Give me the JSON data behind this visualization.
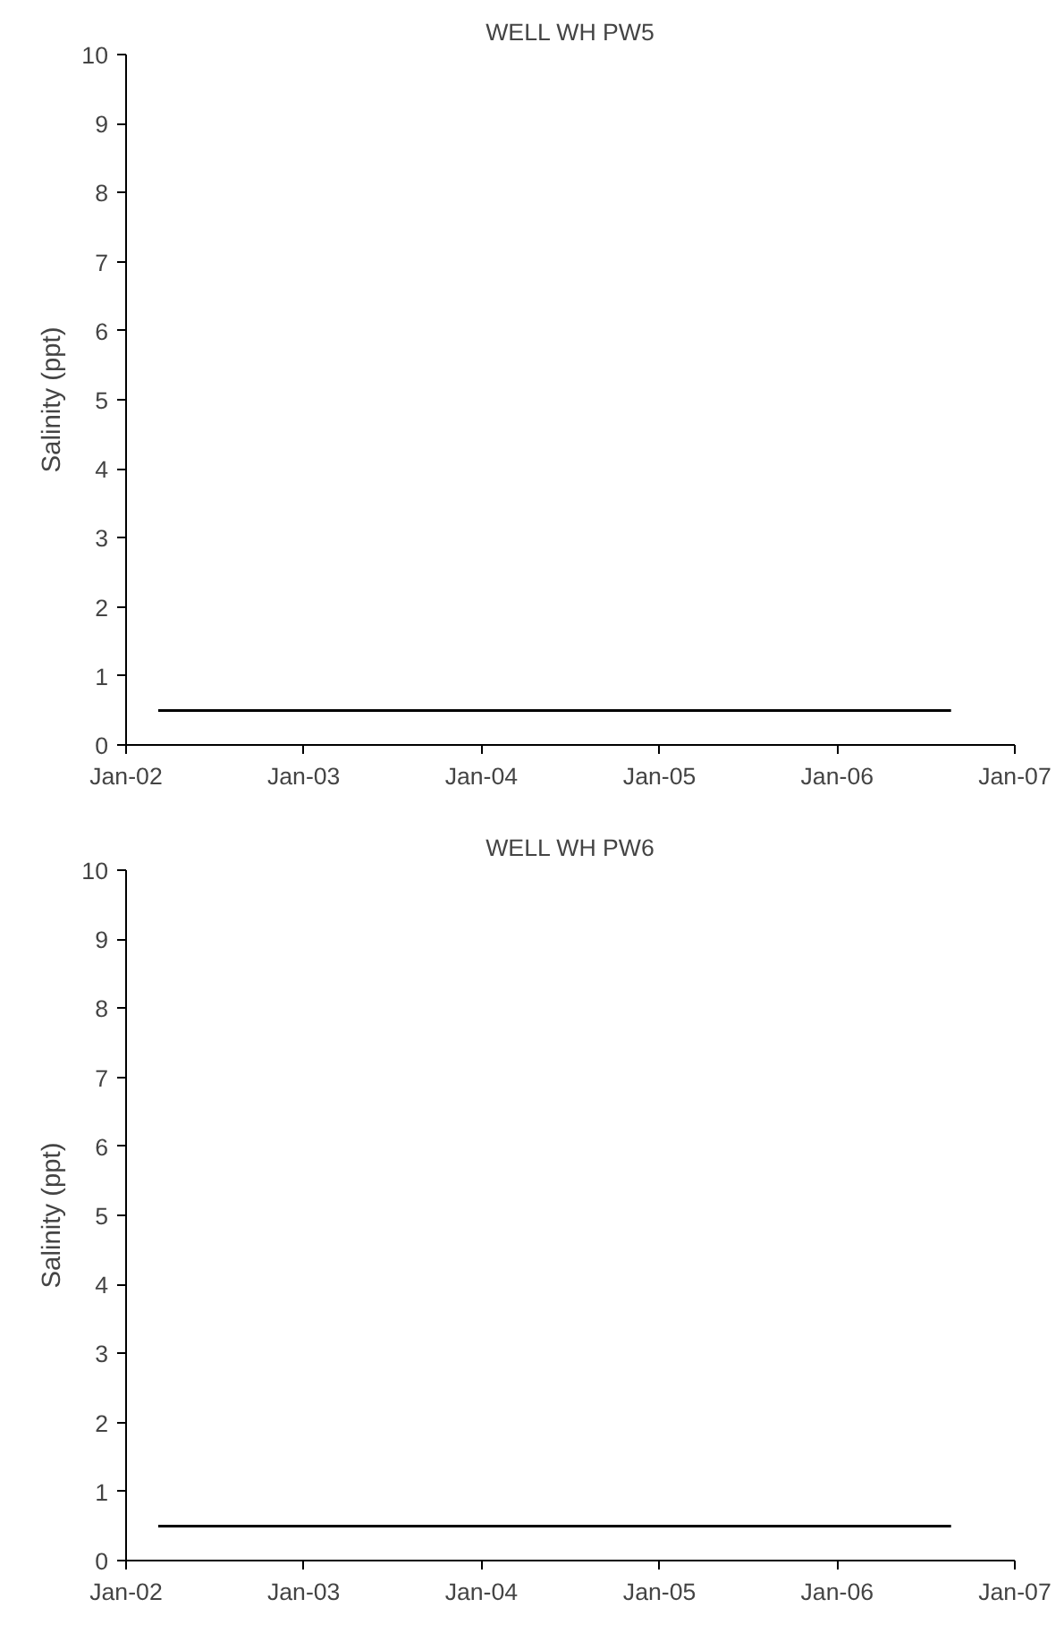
{
  "chart_data": [
    {
      "type": "line",
      "title": "WELL WH PW5",
      "ylabel": "Salinity (ppt)",
      "x": [
        "2002-03-08",
        "2006-08-23"
      ],
      "series": [
        {
          "color": "#000000",
          "values": [
            0.5,
            0.5
          ]
        }
      ],
      "xlim": [
        "2002-01-01",
        "2007-01-01"
      ],
      "xticks": [
        {
          "value": "2002-01-01",
          "label": "Jan-02"
        },
        {
          "value": "2003-01-01",
          "label": "Jan-03"
        },
        {
          "value": "2004-01-01",
          "label": "Jan-04"
        },
        {
          "value": "2005-01-01",
          "label": "Jan-05"
        },
        {
          "value": "2006-01-01",
          "label": "Jan-06"
        },
        {
          "value": "2007-01-01",
          "label": "Jan-07"
        }
      ],
      "ylim": [
        0,
        10
      ],
      "yticks": [
        0,
        1,
        2,
        3,
        4,
        5,
        6,
        7,
        8,
        9,
        10
      ],
      "grid": false
    },
    {
      "type": "line",
      "title": "WELL WH PW6",
      "ylabel": "Salinity (ppt)",
      "x": [
        "2002-03-08",
        "2006-08-23"
      ],
      "series": [
        {
          "color": "#000000",
          "values": [
            0.5,
            0.5
          ]
        }
      ],
      "xlim": [
        "2002-01-01",
        "2007-01-01"
      ],
      "xticks": [
        {
          "value": "2002-01-01",
          "label": "Jan-02"
        },
        {
          "value": "2003-01-01",
          "label": "Jan-03"
        },
        {
          "value": "2004-01-01",
          "label": "Jan-04"
        },
        {
          "value": "2005-01-01",
          "label": "Jan-05"
        },
        {
          "value": "2006-01-01",
          "label": "Jan-06"
        },
        {
          "value": "2007-01-01",
          "label": "Jan-07"
        }
      ],
      "ylim": [
        0,
        10
      ],
      "yticks": [
        0,
        1,
        2,
        3,
        4,
        5,
        6,
        7,
        8,
        9,
        10
      ],
      "grid": false
    }
  ]
}
